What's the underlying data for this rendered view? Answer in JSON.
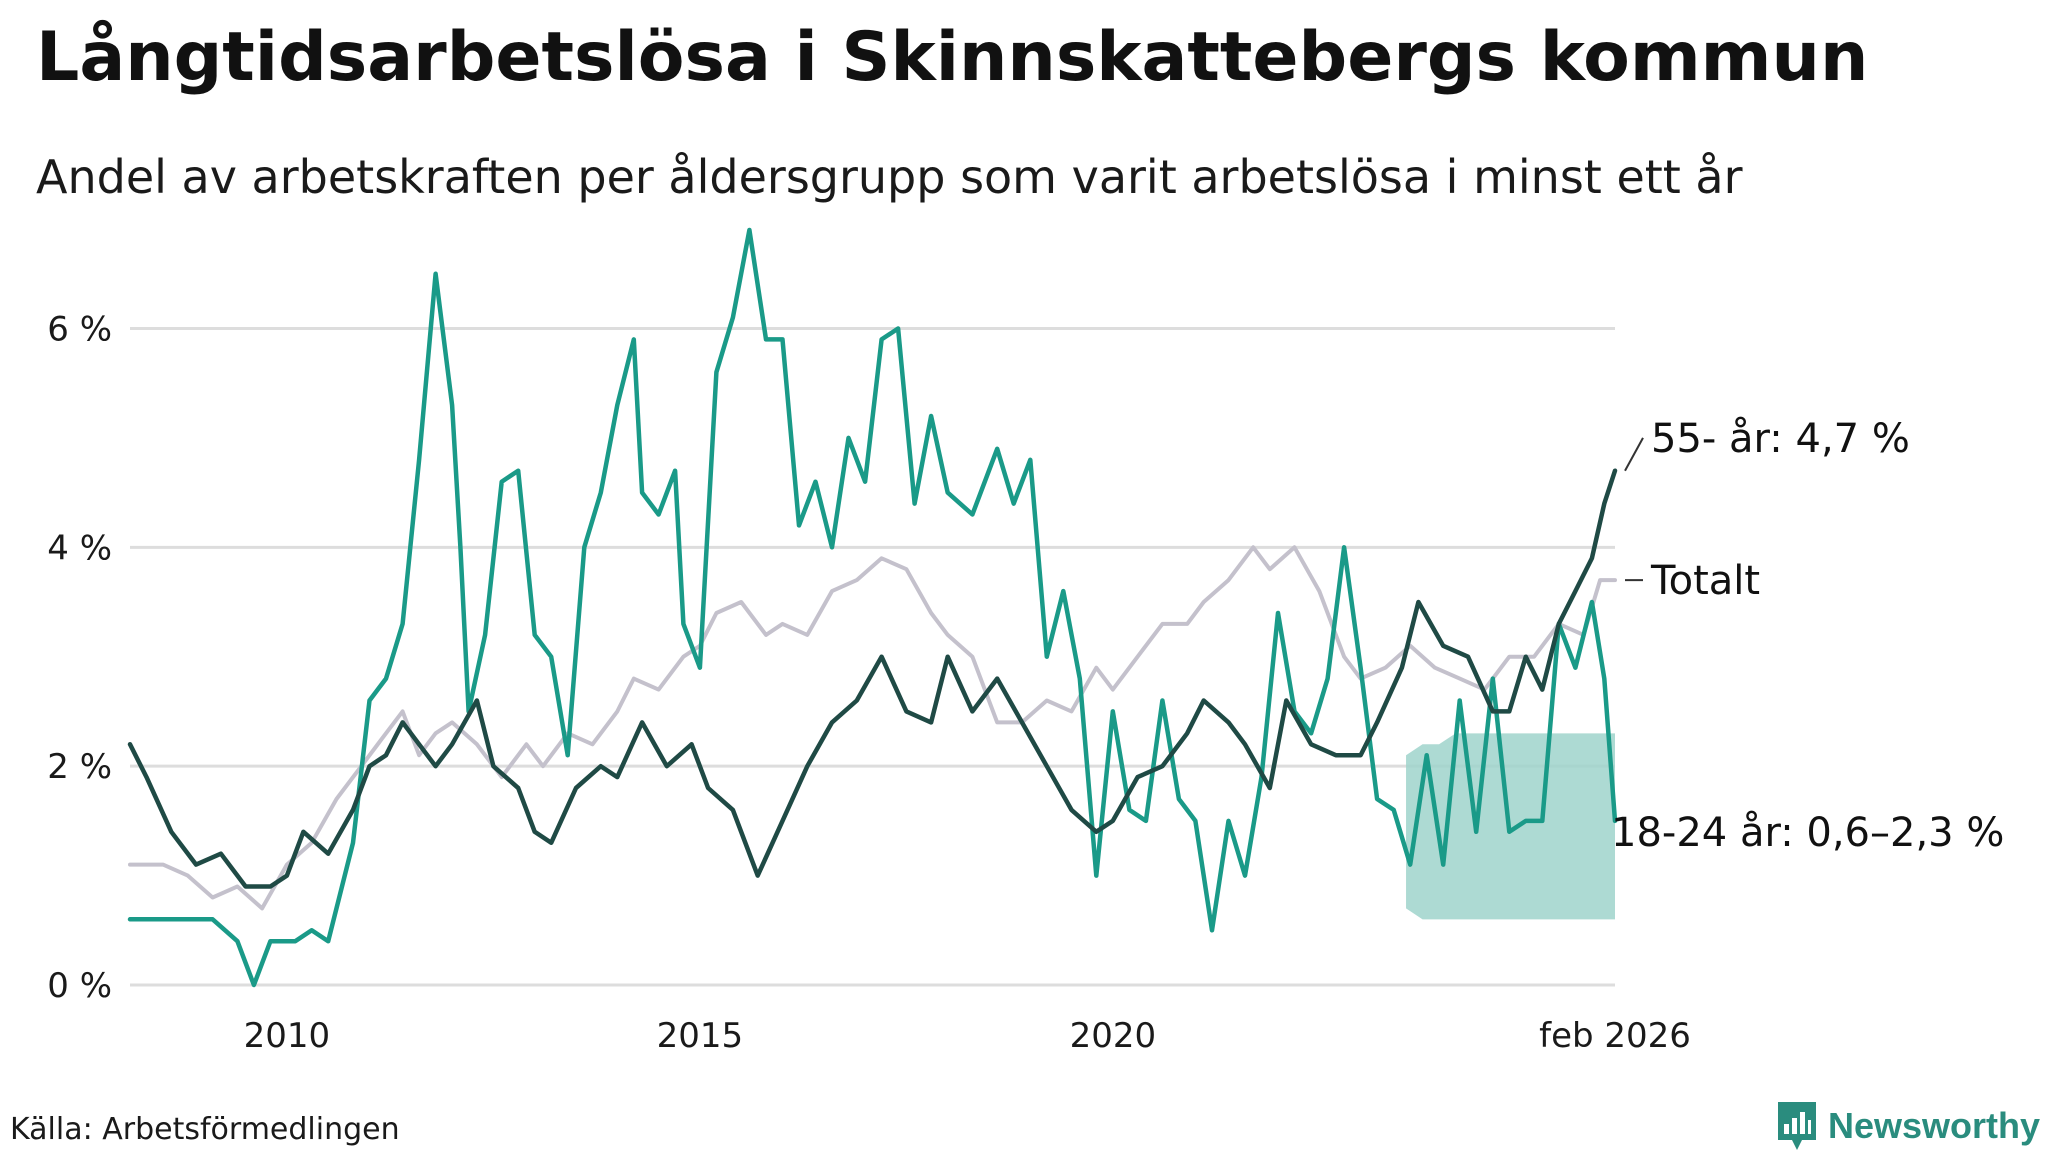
{
  "title": "Långtidsarbetslösa i Skinnskattebergs kommun",
  "subtitle": "Andel av arbetskraften per åldersgrupp som varit arbetslösa i minst ett år",
  "source": "Källa: Arbetsförmedlingen",
  "brand": "Newsworthy",
  "colors": {
    "total": "#c4c1cc",
    "age55": "#1f4a45",
    "age1824": "#1a9a88",
    "band": "#9fd3cb",
    "grid": "#dddddd",
    "brand": "#2a8c7e"
  },
  "chart_data": {
    "type": "line",
    "xlabel": "",
    "ylabel": "",
    "xlim": [
      2008.1,
      2026.08
    ],
    "ylim": [
      0,
      6.9
    ],
    "x_ticks": [
      {
        "value": 2010,
        "label": "2010"
      },
      {
        "value": 2015,
        "label": "2015"
      },
      {
        "value": 2020,
        "label": "2020"
      },
      {
        "value": 2026.08,
        "label": "feb 2026"
      }
    ],
    "y_ticks": [
      {
        "value": 0,
        "label": "0 %"
      },
      {
        "value": 2,
        "label": "2 %"
      },
      {
        "value": 4,
        "label": "4 %"
      },
      {
        "value": 6,
        "label": "6 %"
      }
    ],
    "series": [
      {
        "name": "Totalt",
        "key": "total",
        "end_label": "Totalt",
        "points": [
          [
            2008.1,
            1.1
          ],
          [
            2008.5,
            1.1
          ],
          [
            2008.8,
            1.0
          ],
          [
            2009.1,
            0.8
          ],
          [
            2009.4,
            0.9
          ],
          [
            2009.7,
            0.7
          ],
          [
            2010.0,
            1.1
          ],
          [
            2010.3,
            1.3
          ],
          [
            2010.6,
            1.7
          ],
          [
            2010.9,
            2.0
          ],
          [
            2011.2,
            2.3
          ],
          [
            2011.4,
            2.5
          ],
          [
            2011.6,
            2.1
          ],
          [
            2011.8,
            2.3
          ],
          [
            2012.0,
            2.4
          ],
          [
            2012.3,
            2.2
          ],
          [
            2012.6,
            1.9
          ],
          [
            2012.9,
            2.2
          ],
          [
            2013.1,
            2.0
          ],
          [
            2013.4,
            2.3
          ],
          [
            2013.7,
            2.2
          ],
          [
            2014.0,
            2.5
          ],
          [
            2014.2,
            2.8
          ],
          [
            2014.5,
            2.7
          ],
          [
            2014.8,
            3.0
          ],
          [
            2015.0,
            3.1
          ],
          [
            2015.2,
            3.4
          ],
          [
            2015.5,
            3.5
          ],
          [
            2015.8,
            3.2
          ],
          [
            2016.0,
            3.3
          ],
          [
            2016.3,
            3.2
          ],
          [
            2016.6,
            3.6
          ],
          [
            2016.9,
            3.7
          ],
          [
            2017.2,
            3.9
          ],
          [
            2017.5,
            3.8
          ],
          [
            2017.8,
            3.4
          ],
          [
            2018.0,
            3.2
          ],
          [
            2018.3,
            3.0
          ],
          [
            2018.6,
            2.4
          ],
          [
            2018.9,
            2.4
          ],
          [
            2019.2,
            2.6
          ],
          [
            2019.5,
            2.5
          ],
          [
            2019.8,
            2.9
          ],
          [
            2020.0,
            2.7
          ],
          [
            2020.3,
            3.0
          ],
          [
            2020.6,
            3.3
          ],
          [
            2020.9,
            3.3
          ],
          [
            2021.1,
            3.5
          ],
          [
            2021.4,
            3.7
          ],
          [
            2021.7,
            4.0
          ],
          [
            2021.9,
            3.8
          ],
          [
            2022.2,
            4.0
          ],
          [
            2022.5,
            3.6
          ],
          [
            2022.8,
            3.0
          ],
          [
            2023.0,
            2.8
          ],
          [
            2023.3,
            2.9
          ],
          [
            2023.6,
            3.1
          ],
          [
            2023.9,
            2.9
          ],
          [
            2024.2,
            2.8
          ],
          [
            2024.5,
            2.7
          ],
          [
            2024.8,
            3.0
          ],
          [
            2025.1,
            3.0
          ],
          [
            2025.4,
            3.3
          ],
          [
            2025.7,
            3.2
          ],
          [
            2025.9,
            3.7
          ],
          [
            2026.08,
            3.7
          ]
        ]
      },
      {
        "name": "55- år",
        "key": "age55",
        "end_label": "55- år: 4,7 %",
        "points": [
          [
            2008.1,
            2.2
          ],
          [
            2008.3,
            1.9
          ],
          [
            2008.6,
            1.4
          ],
          [
            2008.9,
            1.1
          ],
          [
            2009.2,
            1.2
          ],
          [
            2009.5,
            0.9
          ],
          [
            2009.8,
            0.9
          ],
          [
            2010.0,
            1.0
          ],
          [
            2010.2,
            1.4
          ],
          [
            2010.5,
            1.2
          ],
          [
            2010.8,
            1.6
          ],
          [
            2011.0,
            2.0
          ],
          [
            2011.2,
            2.1
          ],
          [
            2011.4,
            2.4
          ],
          [
            2011.6,
            2.2
          ],
          [
            2011.8,
            2.0
          ],
          [
            2012.0,
            2.2
          ],
          [
            2012.3,
            2.6
          ],
          [
            2012.5,
            2.0
          ],
          [
            2012.8,
            1.8
          ],
          [
            2013.0,
            1.4
          ],
          [
            2013.2,
            1.3
          ],
          [
            2013.5,
            1.8
          ],
          [
            2013.8,
            2.0
          ],
          [
            2014.0,
            1.9
          ],
          [
            2014.3,
            2.4
          ],
          [
            2014.6,
            2.0
          ],
          [
            2014.9,
            2.2
          ],
          [
            2015.1,
            1.8
          ],
          [
            2015.4,
            1.6
          ],
          [
            2015.7,
            1.0
          ],
          [
            2016.0,
            1.5
          ],
          [
            2016.3,
            2.0
          ],
          [
            2016.6,
            2.4
          ],
          [
            2016.9,
            2.6
          ],
          [
            2017.2,
            3.0
          ],
          [
            2017.5,
            2.5
          ],
          [
            2017.8,
            2.4
          ],
          [
            2018.0,
            3.0
          ],
          [
            2018.3,
            2.5
          ],
          [
            2018.6,
            2.8
          ],
          [
            2018.9,
            2.4
          ],
          [
            2019.2,
            2.0
          ],
          [
            2019.5,
            1.6
          ],
          [
            2019.8,
            1.4
          ],
          [
            2020.0,
            1.5
          ],
          [
            2020.3,
            1.9
          ],
          [
            2020.6,
            2.0
          ],
          [
            2020.9,
            2.3
          ],
          [
            2021.1,
            2.6
          ],
          [
            2021.4,
            2.4
          ],
          [
            2021.6,
            2.2
          ],
          [
            2021.9,
            1.8
          ],
          [
            2022.1,
            2.6
          ],
          [
            2022.4,
            2.2
          ],
          [
            2022.7,
            2.1
          ],
          [
            2023.0,
            2.1
          ],
          [
            2023.2,
            2.4
          ],
          [
            2023.5,
            2.9
          ],
          [
            2023.7,
            3.5
          ],
          [
            2024.0,
            3.1
          ],
          [
            2024.3,
            3.0
          ],
          [
            2024.6,
            2.5
          ],
          [
            2024.8,
            2.5
          ],
          [
            2025.0,
            3.0
          ],
          [
            2025.2,
            2.7
          ],
          [
            2025.4,
            3.3
          ],
          [
            2025.6,
            3.6
          ],
          [
            2025.8,
            3.9
          ],
          [
            2025.95,
            4.4
          ],
          [
            2026.08,
            4.7
          ]
        ]
      },
      {
        "name": "18-24 år",
        "key": "age1824",
        "end_label": "18-24 år: 0,6–2,3 %",
        "points": [
          [
            2008.1,
            0.6
          ],
          [
            2008.3,
            0.6
          ],
          [
            2008.5,
            0.6
          ],
          [
            2008.8,
            0.6
          ],
          [
            2009.1,
            0.6
          ],
          [
            2009.4,
            0.4
          ],
          [
            2009.6,
            0.0
          ],
          [
            2009.8,
            0.4
          ],
          [
            2010.1,
            0.4
          ],
          [
            2010.3,
            0.5
          ],
          [
            2010.5,
            0.4
          ],
          [
            2010.8,
            1.3
          ],
          [
            2011.0,
            2.6
          ],
          [
            2011.2,
            2.8
          ],
          [
            2011.4,
            3.3
          ],
          [
            2011.6,
            4.8
          ],
          [
            2011.8,
            6.5
          ],
          [
            2012.0,
            5.3
          ],
          [
            2012.1,
            4.0
          ],
          [
            2012.2,
            2.5
          ],
          [
            2012.4,
            3.2
          ],
          [
            2012.6,
            4.6
          ],
          [
            2012.8,
            4.7
          ],
          [
            2013.0,
            3.2
          ],
          [
            2013.2,
            3.0
          ],
          [
            2013.4,
            2.1
          ],
          [
            2013.6,
            4.0
          ],
          [
            2013.8,
            4.5
          ],
          [
            2014.0,
            5.3
          ],
          [
            2014.2,
            5.9
          ],
          [
            2014.3,
            4.5
          ],
          [
            2014.5,
            4.3
          ],
          [
            2014.7,
            4.7
          ],
          [
            2014.8,
            3.3
          ],
          [
            2015.0,
            2.9
          ],
          [
            2015.2,
            5.6
          ],
          [
            2015.4,
            6.1
          ],
          [
            2015.6,
            6.9
          ],
          [
            2015.8,
            5.9
          ],
          [
            2016.0,
            5.9
          ],
          [
            2016.2,
            4.2
          ],
          [
            2016.4,
            4.6
          ],
          [
            2016.6,
            4.0
          ],
          [
            2016.8,
            5.0
          ],
          [
            2017.0,
            4.6
          ],
          [
            2017.2,
            5.9
          ],
          [
            2017.4,
            6.0
          ],
          [
            2017.6,
            4.4
          ],
          [
            2017.8,
            5.2
          ],
          [
            2018.0,
            4.5
          ],
          [
            2018.3,
            4.3
          ],
          [
            2018.6,
            4.9
          ],
          [
            2018.8,
            4.4
          ],
          [
            2019.0,
            4.8
          ],
          [
            2019.2,
            3.0
          ],
          [
            2019.4,
            3.6
          ],
          [
            2019.6,
            2.8
          ],
          [
            2019.8,
            1.0
          ],
          [
            2020.0,
            2.5
          ],
          [
            2020.2,
            1.6
          ],
          [
            2020.4,
            1.5
          ],
          [
            2020.6,
            2.6
          ],
          [
            2020.8,
            1.7
          ],
          [
            2021.0,
            1.5
          ],
          [
            2021.2,
            0.5
          ],
          [
            2021.4,
            1.5
          ],
          [
            2021.6,
            1.0
          ],
          [
            2021.8,
            1.9
          ],
          [
            2022.0,
            3.4
          ],
          [
            2022.2,
            2.5
          ],
          [
            2022.4,
            2.3
          ],
          [
            2022.6,
            2.8
          ],
          [
            2022.8,
            4.0
          ],
          [
            2023.0,
            2.9
          ],
          [
            2023.2,
            1.7
          ],
          [
            2023.4,
            1.6
          ],
          [
            2023.6,
            1.1
          ],
          [
            2023.8,
            2.1
          ],
          [
            2024.0,
            1.1
          ],
          [
            2024.2,
            2.6
          ],
          [
            2024.4,
            1.4
          ],
          [
            2024.6,
            2.8
          ],
          [
            2024.8,
            1.4
          ],
          [
            2025.0,
            1.5
          ],
          [
            2025.2,
            1.5
          ],
          [
            2025.4,
            3.3
          ],
          [
            2025.6,
            2.9
          ],
          [
            2025.8,
            3.5
          ],
          [
            2025.95,
            2.8
          ],
          [
            2026.08,
            1.5
          ]
        ]
      }
    ],
    "band_18_24": {
      "name": "18-24 år osäkerhetsintervall",
      "x": [
        2023.55,
        2023.75,
        2023.95,
        2024.15,
        2024.35,
        2024.55,
        2024.75,
        2024.95,
        2025.15,
        2025.35,
        2025.55,
        2025.75,
        2025.95,
        2026.08
      ],
      "lower": [
        0.7,
        0.6,
        0.6,
        0.6,
        0.6,
        0.6,
        0.6,
        0.6,
        0.6,
        0.6,
        0.6,
        0.6,
        0.6,
        0.6
      ],
      "upper": [
        2.1,
        2.2,
        2.2,
        2.3,
        2.3,
        2.3,
        2.3,
        2.3,
        2.3,
        2.3,
        2.3,
        2.3,
        2.3,
        2.3
      ]
    }
  }
}
